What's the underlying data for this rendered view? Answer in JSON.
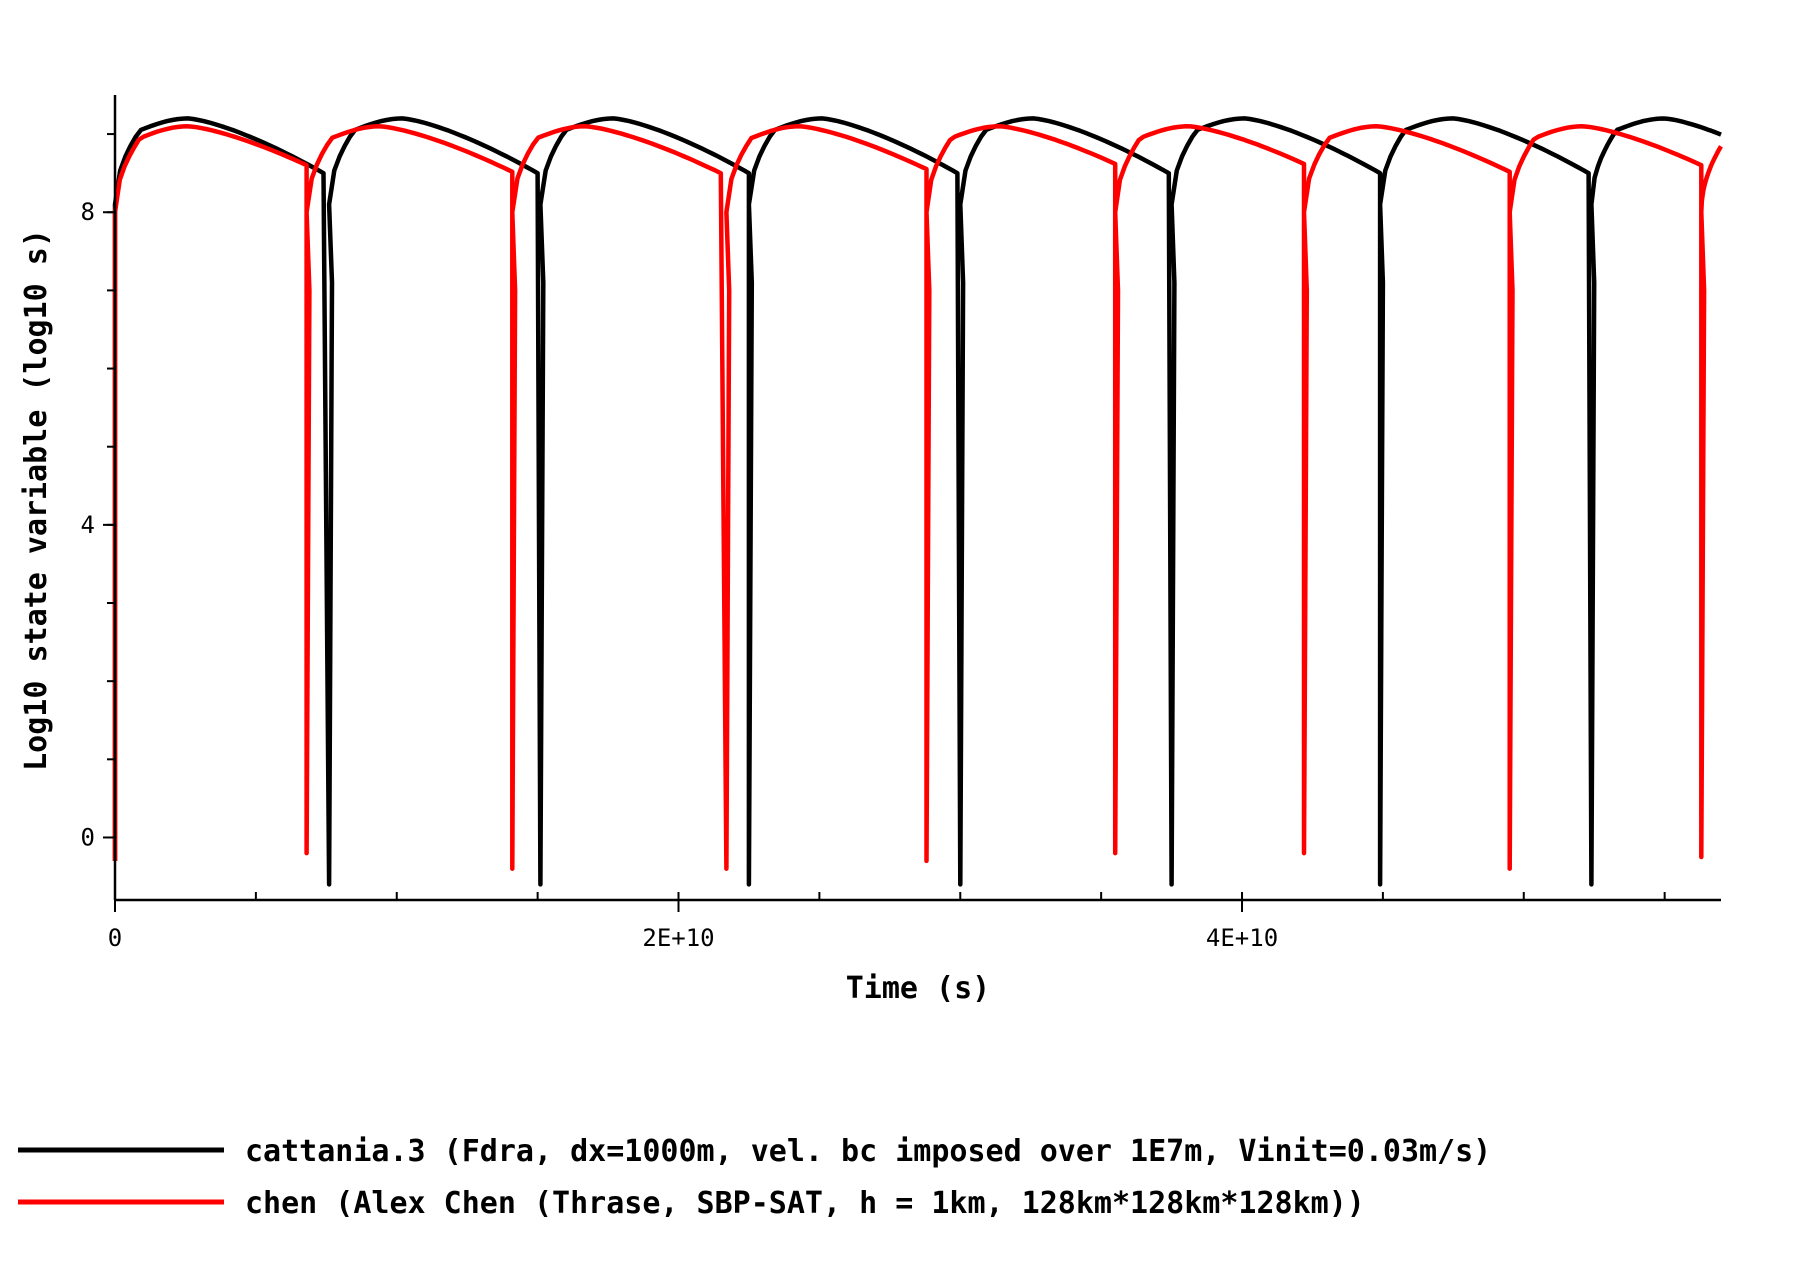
{
  "chart_data": {
    "type": "line",
    "xlabel": "Time (s)",
    "ylabel": "Log10 state variable (log10 s)",
    "xlim": [
      0,
      57000000000.0
    ],
    "ylim": [
      -0.8,
      9.5
    ],
    "x_ticks": [
      {
        "value": 0,
        "label": "0"
      },
      {
        "value": 20000000000.0,
        "label": "2E+10"
      },
      {
        "value": 40000000000.0,
        "label": "4E+10"
      }
    ],
    "y_ticks": [
      {
        "value": 0,
        "label": "0"
      },
      {
        "value": 4,
        "label": "4"
      },
      {
        "value": 8,
        "label": "8"
      }
    ],
    "legend_position": "bottom",
    "series": [
      {
        "name": "cattania.3 (Fdra, dx=1000m, vel. bc imposed over 1E7m, Vinit=0.03m/s)",
        "color": "#000000",
        "start": {
          "x": 0,
          "y": -0.3
        },
        "cycles": [
          {
            "start": 0,
            "end": 7600000000.0,
            "min": -0.6
          },
          {
            "start": 7600000000.0,
            "end": 15100000000.0,
            "min": -0.6
          },
          {
            "start": 15100000000.0,
            "end": 22500000000.0,
            "min": -0.6
          },
          {
            "start": 22500000000.0,
            "end": 30000000000.0,
            "min": -0.6
          },
          {
            "start": 30000000000.0,
            "end": 37500000000.0,
            "min": -0.6
          },
          {
            "start": 37500000000.0,
            "end": 44900000000.0,
            "min": -0.6
          },
          {
            "start": 44900000000.0,
            "end": 52400000000.0,
            "min": -0.6
          },
          {
            "start": 52400000000.0,
            "end": 57000000000.0,
            "min": -0.6
          }
        ],
        "rise_to": 8.1,
        "peak": 9.2,
        "pre_event": 8.5
      },
      {
        "name": "chen (Alex Chen (Thrase, SBP-SAT, h = 1km, 128km*128km*128km))",
        "color": "#ff0000",
        "start": {
          "x": 0,
          "y": -0.3
        },
        "cycles": [
          {
            "start": 0,
            "end": 6800000000.0,
            "min": -0.2
          },
          {
            "start": 6800000000.0,
            "end": 14100000000.0,
            "min": -0.4
          },
          {
            "start": 14100000000.0,
            "end": 21700000000.0,
            "min": -0.4
          },
          {
            "start": 21700000000.0,
            "end": 28800000000.0,
            "min": -0.3
          },
          {
            "start": 28800000000.0,
            "end": 35500000000.0,
            "min": -0.2
          },
          {
            "start": 35500000000.0,
            "end": 42200000000.0,
            "min": -0.2
          },
          {
            "start": 42200000000.0,
            "end": 49500000000.0,
            "min": -0.4
          },
          {
            "start": 49500000000.0,
            "end": 56300000000.0,
            "min": -0.25
          },
          {
            "start": 56300000000.0,
            "end": 57000000000.0,
            "min": -0.25
          }
        ],
        "rise_to": 8.0,
        "peak": 9.1,
        "pre_event": 8.5
      }
    ]
  }
}
